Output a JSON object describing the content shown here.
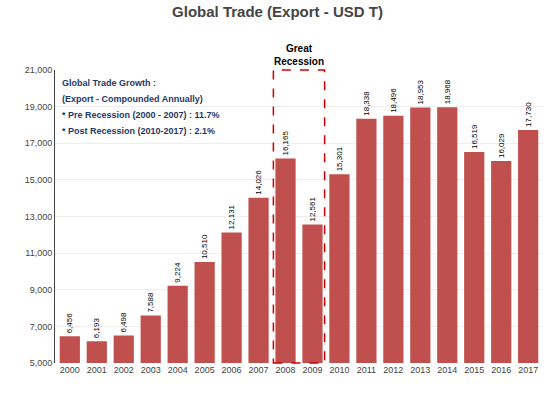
{
  "chart_data": {
    "type": "bar",
    "title": "Global Trade (Export - USD T)",
    "categories": [
      "2000",
      "2001",
      "2002",
      "2003",
      "2004",
      "2005",
      "2006",
      "2007",
      "2008",
      "2009",
      "2010",
      "2011",
      "2012",
      "2013",
      "2014",
      "2015",
      "2016",
      "2017"
    ],
    "values": [
      6456,
      6193,
      6498,
      7588,
      9224,
      10510,
      12131,
      14026,
      16165,
      12561,
      15301,
      18338,
      18496,
      18953,
      18968,
      16519,
      16029,
      17730
    ],
    "value_labels": [
      "6,456",
      "6,193",
      "6,498",
      "7,588",
      "9,224",
      "10,510",
      "12,131",
      "14,026",
      "16,165",
      "12,561",
      "15,301",
      "18,338",
      "18,496",
      "18,953",
      "18,968",
      "16,519",
      "16,029",
      "17,730"
    ],
    "color": "#C0504D",
    "ylim": [
      5000,
      21000
    ],
    "yticks": [
      {
        "value": 5000,
        "label": "5,000"
      },
      {
        "value": 7000,
        "label": "7,000"
      },
      {
        "value": 9000,
        "label": "9,000"
      },
      {
        "value": 11000,
        "label": "11,000"
      },
      {
        "value": 13000,
        "label": "13,000"
      },
      {
        "value": 15000,
        "label": "15,000"
      },
      {
        "value": 17000,
        "label": "17,000"
      },
      {
        "value": 19000,
        "label": "19,000"
      },
      {
        "value": 21000,
        "label": "21,000"
      }
    ],
    "grid": true,
    "data_labels": true,
    "annotations": [
      {
        "text": "Great\nRecession",
        "categories": [
          "2008",
          "2009"
        ],
        "color": "#CC0000"
      },
      {
        "text": "Global Trade Growth :",
        "color": "#1F3864"
      },
      {
        "text": "(Export - Compounded Annually)",
        "color": "#1F3864"
      },
      {
        "text": "* Pre Recession (2000 - 2007) : 11.7%",
        "color": "#1F3864"
      },
      {
        "text": "* Post Recession (2010-2017) : 2.1%",
        "color": "#1F3864"
      }
    ]
  }
}
